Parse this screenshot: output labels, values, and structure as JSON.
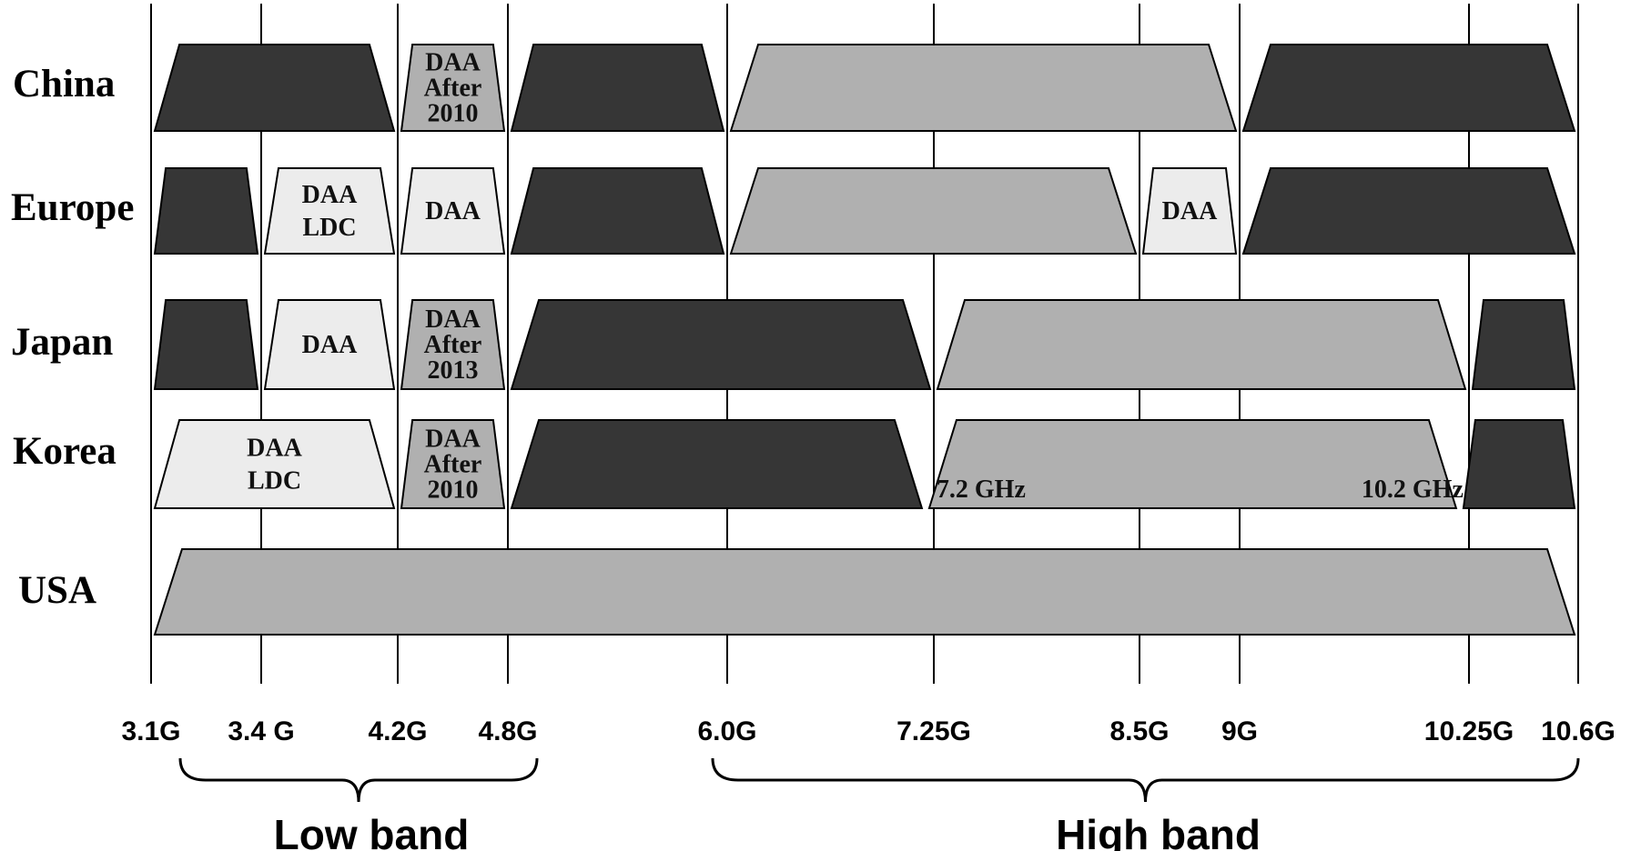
{
  "frequency_ticks": [
    {
      "ghz": 3.1,
      "label": "3.1G"
    },
    {
      "ghz": 3.4,
      "label": "3.4 G"
    },
    {
      "ghz": 4.2,
      "label": "4.2G"
    },
    {
      "ghz": 4.8,
      "label": "4.8G"
    },
    {
      "ghz": 6.0,
      "label": "6.0G"
    },
    {
      "ghz": 7.25,
      "label": "7.25G"
    },
    {
      "ghz": 8.5,
      "label": "8.5G"
    },
    {
      "ghz": 9.0,
      "label": "9G"
    },
    {
      "ghz": 10.25,
      "label": "10.25G"
    },
    {
      "ghz": 10.6,
      "label": "10.6G"
    }
  ],
  "band_groups": [
    {
      "label": "Low band",
      "start_ghz": 3.1,
      "end_ghz": 4.8
    },
    {
      "label": "High band",
      "start_ghz": 6.0,
      "end_ghz": 10.6
    }
  ],
  "colors": {
    "dark": "#363636",
    "medium": "#b0b0b0",
    "light": "#ececec",
    "grid": "#000000"
  },
  "regions": [
    {
      "name": "China",
      "bands": [
        {
          "start_ghz": 3.1,
          "end_ghz": 4.2,
          "shade": "dark",
          "lines": []
        },
        {
          "start_ghz": 4.2,
          "end_ghz": 4.8,
          "shade": "medium",
          "lines": [
            "DAA",
            "After",
            "2010"
          ]
        },
        {
          "start_ghz": 4.8,
          "end_ghz": 6.0,
          "shade": "dark",
          "lines": []
        },
        {
          "start_ghz": 6.0,
          "end_ghz": 9.0,
          "shade": "medium",
          "lines": []
        },
        {
          "start_ghz": 9.0,
          "end_ghz": 10.6,
          "shade": "dark",
          "lines": []
        }
      ]
    },
    {
      "name": "Europe",
      "bands": [
        {
          "start_ghz": 3.1,
          "end_ghz": 3.4,
          "shade": "dark",
          "lines": []
        },
        {
          "start_ghz": 3.4,
          "end_ghz": 4.2,
          "shade": "light",
          "lines": [
            "DAA",
            "LDC"
          ]
        },
        {
          "start_ghz": 4.2,
          "end_ghz": 4.8,
          "shade": "light",
          "lines": [
            "DAA"
          ]
        },
        {
          "start_ghz": 4.8,
          "end_ghz": 6.0,
          "shade": "dark",
          "lines": []
        },
        {
          "start_ghz": 6.0,
          "end_ghz": 8.5,
          "shade": "medium",
          "lines": []
        },
        {
          "start_ghz": 8.5,
          "end_ghz": 9.0,
          "shade": "light",
          "lines": [
            "DAA"
          ]
        },
        {
          "start_ghz": 9.0,
          "end_ghz": 10.6,
          "shade": "dark",
          "lines": []
        }
      ]
    },
    {
      "name": "Japan",
      "bands": [
        {
          "start_ghz": 3.1,
          "end_ghz": 3.4,
          "shade": "dark",
          "lines": []
        },
        {
          "start_ghz": 3.4,
          "end_ghz": 4.2,
          "shade": "light",
          "lines": [
            "DAA"
          ]
        },
        {
          "start_ghz": 4.2,
          "end_ghz": 4.8,
          "shade": "medium",
          "lines": [
            "DAA",
            "After",
            "2013"
          ]
        },
        {
          "start_ghz": 4.8,
          "end_ghz": 7.25,
          "shade": "dark",
          "lines": []
        },
        {
          "start_ghz": 7.25,
          "end_ghz": 10.25,
          "shade": "medium",
          "lines": []
        },
        {
          "start_ghz": 10.25,
          "end_ghz": 10.6,
          "shade": "dark",
          "lines": []
        }
      ]
    },
    {
      "name": "Korea",
      "bands": [
        {
          "start_ghz": 3.1,
          "end_ghz": 4.2,
          "shade": "light",
          "lines": [
            "DAA",
            "LDC"
          ]
        },
        {
          "start_ghz": 4.2,
          "end_ghz": 4.8,
          "shade": "medium",
          "lines": [
            "DAA",
            "After",
            "2010"
          ]
        },
        {
          "start_ghz": 4.8,
          "end_ghz": 7.2,
          "shade": "dark",
          "lines": []
        },
        {
          "start_ghz": 7.2,
          "end_ghz": 10.2,
          "shade": "medium",
          "lines": [],
          "edge_labels": [
            "7.2 GHz",
            "10.2 GHz"
          ]
        },
        {
          "start_ghz": 10.2,
          "end_ghz": 10.6,
          "shade": "dark",
          "lines": []
        }
      ]
    },
    {
      "name": "USA",
      "bands": [
        {
          "start_ghz": 3.1,
          "end_ghz": 10.6,
          "shade": "medium",
          "lines": []
        }
      ]
    }
  ]
}
